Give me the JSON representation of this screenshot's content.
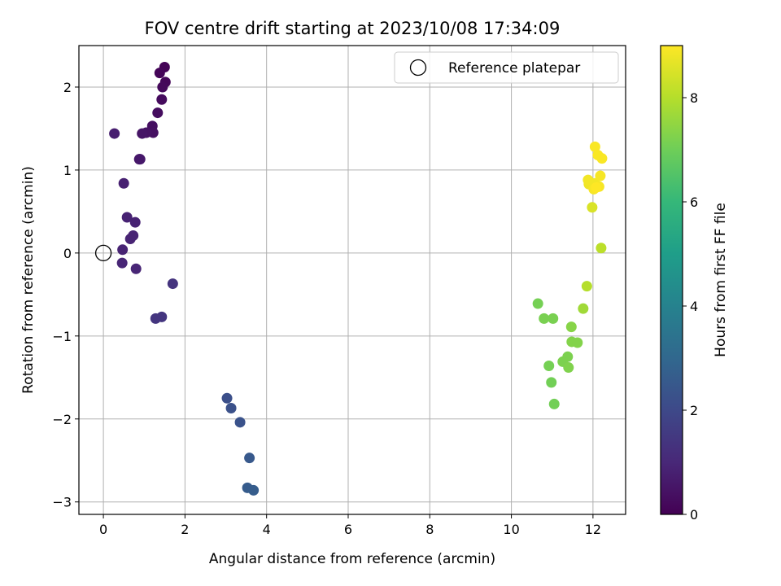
{
  "chart_data": {
    "type": "scatter",
    "title": "FOV centre drift starting at 2023/10/08 17:34:09",
    "xlabel": "Angular distance from reference (arcmin)",
    "ylabel": "Rotation from reference (arcmin)",
    "xlim": [
      -0.6,
      12.8
    ],
    "ylim": [
      -3.15,
      2.5
    ],
    "xticks": [
      0,
      2,
      4,
      6,
      8,
      10,
      12
    ],
    "yticks": [
      -3,
      -2,
      -1,
      0,
      1,
      2
    ],
    "grid": true,
    "legend": {
      "placement": "top-right",
      "entries": [
        "Reference platepar"
      ]
    },
    "reference_point": {
      "x": 0,
      "y": 0
    },
    "colorbar": {
      "label": "Hours from first FF file",
      "range": [
        0,
        9
      ],
      "ticks": [
        0,
        2,
        4,
        6,
        8
      ],
      "colormap": [
        "#440154",
        "#482878",
        "#3e4989",
        "#31688e",
        "#26828e",
        "#1f9e89",
        "#35b779",
        "#6ece58",
        "#b5de2b",
        "#fde725"
      ]
    },
    "points": [
      {
        "x": 1.5,
        "y": 2.24,
        "t": 0.05
      },
      {
        "x": 1.38,
        "y": 2.17,
        "t": 0.1
      },
      {
        "x": 1.52,
        "y": 2.06,
        "t": 0.15
      },
      {
        "x": 1.45,
        "y": 2.0,
        "t": 0.2
      },
      {
        "x": 1.43,
        "y": 1.85,
        "t": 0.25
      },
      {
        "x": 1.33,
        "y": 1.69,
        "t": 0.3
      },
      {
        "x": 1.2,
        "y": 1.53,
        "t": 0.35
      },
      {
        "x": 1.22,
        "y": 1.45,
        "t": 0.4
      },
      {
        "x": 1.05,
        "y": 1.45,
        "t": 0.45
      },
      {
        "x": 0.95,
        "y": 1.44,
        "t": 0.5
      },
      {
        "x": 0.88,
        "y": 1.13,
        "t": 0.55
      },
      {
        "x": 0.9,
        "y": 1.13,
        "t": 0.6
      },
      {
        "x": 0.27,
        "y": 1.44,
        "t": 0.75
      },
      {
        "x": 0.5,
        "y": 0.84,
        "t": 0.8
      },
      {
        "x": 0.58,
        "y": 0.43,
        "t": 0.85
      },
      {
        "x": 0.78,
        "y": 0.37,
        "t": 0.85
      },
      {
        "x": 0.73,
        "y": 0.21,
        "t": 0.9
      },
      {
        "x": 0.66,
        "y": 0.17,
        "t": 0.9
      },
      {
        "x": 0.47,
        "y": 0.04,
        "t": 0.9
      },
      {
        "x": 0.46,
        "y": -0.12,
        "t": 0.95
      },
      {
        "x": 0.8,
        "y": -0.19,
        "t": 0.95
      },
      {
        "x": 1.7,
        "y": -0.37,
        "t": 1.35
      },
      {
        "x": 1.43,
        "y": -0.77,
        "t": 1.4
      },
      {
        "x": 1.28,
        "y": -0.79,
        "t": 1.4
      },
      {
        "x": 3.03,
        "y": -1.75,
        "t": 2.2
      },
      {
        "x": 3.13,
        "y": -1.87,
        "t": 2.25
      },
      {
        "x": 3.35,
        "y": -2.04,
        "t": 2.3
      },
      {
        "x": 3.58,
        "y": -2.47,
        "t": 2.5
      },
      {
        "x": 3.53,
        "y": -2.83,
        "t": 2.6
      },
      {
        "x": 3.68,
        "y": -2.86,
        "t": 2.65
      },
      {
        "x": 10.65,
        "y": -0.61,
        "t": 7.1
      },
      {
        "x": 10.8,
        "y": -0.79,
        "t": 7.15
      },
      {
        "x": 11.02,
        "y": -0.79,
        "t": 7.15
      },
      {
        "x": 11.47,
        "y": -0.89,
        "t": 7.35
      },
      {
        "x": 11.48,
        "y": -1.07,
        "t": 7.3
      },
      {
        "x": 11.62,
        "y": -1.08,
        "t": 7.3
      },
      {
        "x": 11.38,
        "y": -1.25,
        "t": 7.2
      },
      {
        "x": 11.26,
        "y": -1.31,
        "t": 7.2
      },
      {
        "x": 11.4,
        "y": -1.38,
        "t": 7.25
      },
      {
        "x": 10.92,
        "y": -1.36,
        "t": 7.1
      },
      {
        "x": 10.98,
        "y": -1.56,
        "t": 7.05
      },
      {
        "x": 11.05,
        "y": -1.82,
        "t": 7.05
      },
      {
        "x": 11.76,
        "y": -0.67,
        "t": 7.7
      },
      {
        "x": 11.85,
        "y": -0.4,
        "t": 8.0
      },
      {
        "x": 12.2,
        "y": 0.06,
        "t": 8.1
      },
      {
        "x": 11.98,
        "y": 0.55,
        "t": 8.5
      },
      {
        "x": 11.9,
        "y": 0.83,
        "t": 8.8
      },
      {
        "x": 11.88,
        "y": 0.88,
        "t": 8.85
      },
      {
        "x": 12.05,
        "y": 0.84,
        "t": 8.85
      },
      {
        "x": 12.15,
        "y": 0.8,
        "t": 8.9
      },
      {
        "x": 12.02,
        "y": 0.77,
        "t": 8.9
      },
      {
        "x": 12.18,
        "y": 0.93,
        "t": 8.9
      },
      {
        "x": 12.05,
        "y": 1.28,
        "t": 8.95
      },
      {
        "x": 12.12,
        "y": 1.18,
        "t": 8.95
      },
      {
        "x": 12.22,
        "y": 1.14,
        "t": 8.95
      },
      {
        "x": 12.08,
        "y": 0.79,
        "t": 9.0
      }
    ]
  }
}
